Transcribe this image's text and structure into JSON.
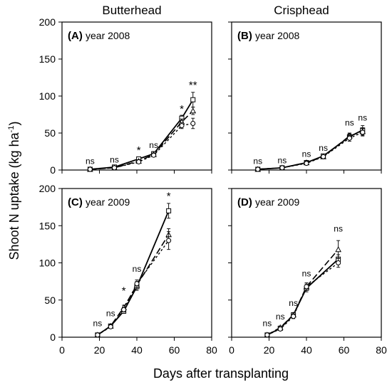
{
  "figure": {
    "ylabel": "Shoot N uptake (kg ha",
    "ylabel_sup": "-1",
    "ylabel_close": ")",
    "xlabel": "Days after transplanting",
    "column_titles": [
      "Butterhead",
      "Crisphead"
    ]
  },
  "chart_data": [
    {
      "type": "line",
      "panel": "(A)",
      "subtitle": "year 2008",
      "ylim": [
        0,
        200
      ],
      "xlim": [
        0,
        80
      ],
      "yticks": [
        0,
        50,
        100,
        150,
        200
      ],
      "xticks": [
        0,
        20,
        40,
        60,
        80
      ],
      "show_ytick_labels": true,
      "show_xtick_labels": false,
      "x": [
        15,
        28,
        41,
        49,
        64,
        70
      ],
      "series": [
        {
          "marker": "square",
          "line": "solid",
          "values": [
            1,
            4,
            15,
            22,
            70,
            95
          ],
          "errors": [
            1,
            1,
            2,
            3,
            4,
            10
          ]
        },
        {
          "marker": "triangle",
          "line": "long-dash",
          "values": [
            1,
            3,
            12,
            21,
            65,
            80
          ],
          "errors": [
            1,
            1,
            2,
            2,
            4,
            5
          ]
        },
        {
          "marker": "circle",
          "line": "short-dash",
          "values": [
            1,
            3,
            11,
            20,
            60,
            63
          ],
          "errors": [
            1,
            1,
            2,
            2,
            4,
            7
          ]
        }
      ],
      "annotations": [
        "ns",
        "ns",
        "*",
        "ns",
        "*",
        "**"
      ],
      "annotation_y": [
        8,
        10,
        22,
        30,
        78,
        110
      ]
    },
    {
      "type": "line",
      "panel": "(B)",
      "subtitle": "year 2008",
      "ylim": [
        0,
        200
      ],
      "xlim": [
        0,
        80
      ],
      "yticks": [
        0,
        50,
        100,
        150,
        200
      ],
      "xticks": [
        0,
        20,
        40,
        60,
        80
      ],
      "show_ytick_labels": false,
      "show_xtick_labels": false,
      "x": [
        14,
        27,
        40,
        49,
        63,
        70
      ],
      "series": [
        {
          "marker": "square",
          "line": "solid",
          "values": [
            1,
            3,
            10,
            19,
            45,
            54
          ],
          "errors": [
            1,
            1,
            2,
            2,
            4,
            6
          ]
        },
        {
          "marker": "triangle",
          "line": "long-dash",
          "values": [
            1,
            3,
            10,
            18,
            46,
            52
          ],
          "errors": [
            1,
            1,
            2,
            2,
            4,
            5
          ]
        },
        {
          "marker": "circle",
          "line": "short-dash",
          "values": [
            1,
            3,
            9,
            18,
            43,
            51
          ],
          "errors": [
            1,
            1,
            2,
            2,
            4,
            5
          ]
        }
      ],
      "annotations": [
        "ns",
        "ns",
        "ns",
        "ns",
        "ns",
        "ns"
      ],
      "annotation_y": [
        8,
        9,
        18,
        26,
        60,
        67
      ]
    },
    {
      "type": "line",
      "panel": "(C)",
      "subtitle": "year 2009",
      "ylim": [
        0,
        200
      ],
      "xlim": [
        0,
        80
      ],
      "yticks": [
        0,
        50,
        100,
        150,
        200
      ],
      "xticks": [
        0,
        20,
        40,
        60,
        80
      ],
      "show_ytick_labels": true,
      "show_xtick_labels": true,
      "x": [
        19,
        26,
        33,
        40,
        57
      ],
      "series": [
        {
          "marker": "square",
          "line": "solid",
          "values": [
            3,
            15,
            35,
            68,
            170
          ],
          "errors": [
            1,
            2,
            3,
            5,
            10
          ]
        },
        {
          "marker": "triangle",
          "line": "long-dash",
          "values": [
            3,
            15,
            40,
            70,
            138
          ],
          "errors": [
            1,
            2,
            3,
            5,
            8
          ]
        },
        {
          "marker": "circle",
          "line": "short-dash",
          "values": [
            3,
            14,
            37,
            72,
            130
          ],
          "errors": [
            1,
            2,
            3,
            5,
            12
          ]
        }
      ],
      "annotations": [
        "ns",
        "ns",
        "*",
        "ns",
        "*"
      ],
      "annotation_y": [
        15,
        28,
        58,
        88,
        185
      ]
    },
    {
      "type": "line",
      "panel": "(D)",
      "subtitle": "year 2009",
      "ylim": [
        0,
        200
      ],
      "xlim": [
        0,
        80
      ],
      "yticks": [
        0,
        50,
        100,
        150,
        200
      ],
      "xticks": [
        0,
        20,
        40,
        60,
        80
      ],
      "show_ytick_labels": false,
      "show_xtick_labels": true,
      "x": [
        19,
        26,
        33,
        40,
        57
      ],
      "series": [
        {
          "marker": "square",
          "line": "solid",
          "values": [
            3,
            12,
            30,
            66,
            105
          ],
          "errors": [
            1,
            2,
            3,
            5,
            6
          ]
        },
        {
          "marker": "triangle",
          "line": "long-dash",
          "values": [
            3,
            13,
            30,
            68,
            118
          ],
          "errors": [
            1,
            2,
            3,
            5,
            12
          ]
        },
        {
          "marker": "circle",
          "line": "short-dash",
          "values": [
            3,
            11,
            28,
            68,
            100
          ],
          "errors": [
            1,
            2,
            3,
            5,
            6
          ]
        }
      ],
      "annotations": [
        "ns",
        "ns",
        "ns",
        "ns",
        "ns"
      ],
      "annotation_y": [
        15,
        24,
        42,
        82,
        142
      ]
    }
  ]
}
